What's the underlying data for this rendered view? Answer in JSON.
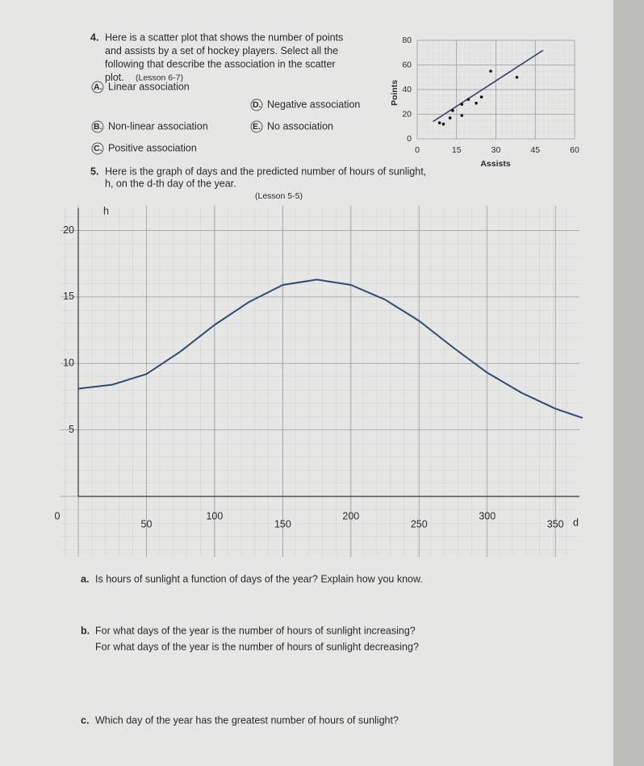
{
  "problem_4": {
    "number": "4.",
    "lines": [
      "Here is a scatter plot that shows the number of points",
      "and assists by a set of hockey players. Select all the",
      "following that describe the association in the scatter",
      "plot."
    ],
    "lesson": "(Lesson 6-7)",
    "options": [
      {
        "letter": "A.",
        "text": "Linear association"
      },
      {
        "letter": "B.",
        "text": "Non-linear association"
      },
      {
        "letter": "C.",
        "text": "Positive association"
      },
      {
        "letter": "D.",
        "text": "Negative association"
      },
      {
        "letter": "E.",
        "text": "No association"
      }
    ],
    "chart": {
      "type": "scatter",
      "x_label": "Assists",
      "y_label": "Points",
      "xlim": [
        0,
        60
      ],
      "ylim": [
        0,
        80
      ],
      "xticks": [
        0,
        15,
        30,
        45,
        60
      ],
      "yticks": [
        0,
        20,
        40,
        60,
        80
      ],
      "x": [
        8.5,
        12.5,
        13.5,
        17,
        17,
        19.5,
        22.5,
        24.5,
        28,
        38,
        10
      ],
      "y": [
        13,
        17,
        23,
        28,
        19,
        32,
        29,
        34,
        55,
        50,
        12
      ],
      "trend_line": {
        "x": [
          6,
          48
        ],
        "y": [
          14,
          72
        ]
      }
    }
  },
  "problem_5": {
    "number": "5.",
    "lines": [
      "Here is the graph of days and the predicted number of hours of sunlight,",
      "h, on the d-th day of the year."
    ],
    "lesson": "(Lesson 5-5)",
    "chart": {
      "type": "line",
      "x_label": "d",
      "y_label": "h",
      "xlim": [
        0,
        370
      ],
      "ylim": [
        0,
        21
      ],
      "xticks": [
        0,
        50,
        100,
        150,
        200,
        250,
        300,
        350
      ],
      "yticks": [
        0,
        5,
        10,
        15,
        20
      ],
      "x": [
        0,
        25,
        50,
        75,
        100,
        125,
        150,
        175,
        200,
        225,
        250,
        275,
        300,
        325,
        350,
        370
      ],
      "y": [
        8.1,
        8.4,
        9.2,
        10.9,
        12.9,
        14.6,
        15.9,
        16.3,
        15.9,
        14.8,
        13.2,
        11.2,
        9.3,
        7.8,
        6.6,
        5.9
      ]
    }
  },
  "questions": [
    {
      "letter": "a.",
      "lines": [
        "Is hours of sunlight a function of days of the year? Explain how you know."
      ]
    },
    {
      "letter": "b.",
      "lines": [
        "For what days of the year is the number of hours of sunlight increasing?",
        "For what days of the year is the number of hours of sunlight decreasing?"
      ]
    },
    {
      "letter": "c.",
      "lines": [
        "Which day of the year has the greatest number of hours of sunlight?"
      ]
    }
  ]
}
